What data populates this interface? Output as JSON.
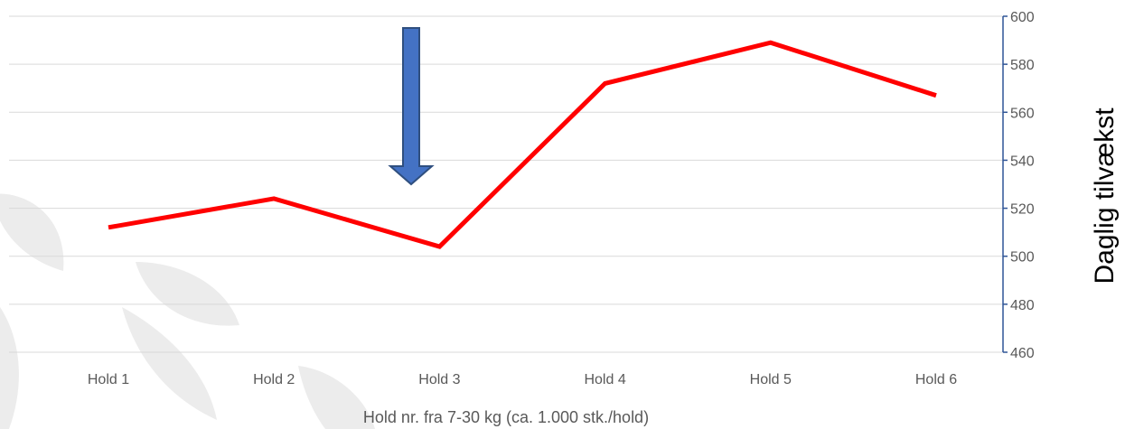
{
  "chart_data": {
    "type": "line",
    "categories": [
      "Hold 1",
      "Hold 2",
      "Hold 3",
      "Hold 4",
      "Hold 5",
      "Hold 6"
    ],
    "series": [
      {
        "values": [
          512,
          524,
          504,
          572,
          589,
          567
        ]
      }
    ],
    "xlabel": "Hold nr. fra 7-30 kg (ca. 1.000 stk./hold)",
    "ylabel": "Daglig tilvækst",
    "ylim": [
      460,
      600
    ],
    "yticks": [
      460,
      480,
      500,
      520,
      540,
      560,
      580,
      600
    ],
    "y_axis_side": "right",
    "grid": true,
    "legend": false,
    "annotation": {
      "type": "down-arrow",
      "at_category": "Hold 3"
    },
    "colors": {
      "line": "#ff0000",
      "grid": "#d9d9d9",
      "axis": "#2f5597",
      "arrow_fill": "#4472c4",
      "arrow_stroke": "#2f4f7f",
      "watermark": "#ececec"
    }
  }
}
